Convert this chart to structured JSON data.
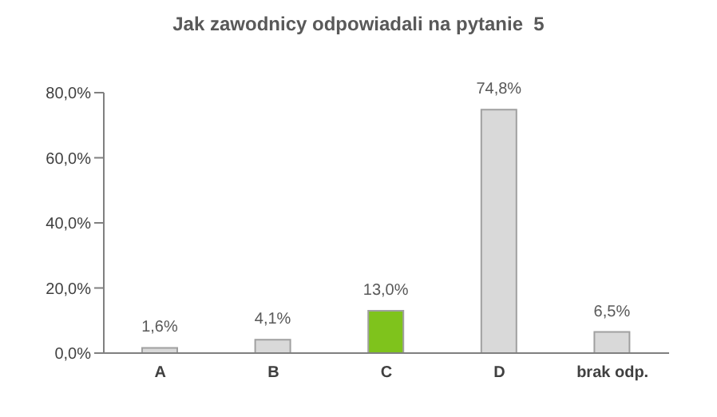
{
  "chart_data": {
    "type": "bar",
    "title": "Jak zawodnicy odpowiadali na pytanie  5",
    "categories": [
      "A",
      "B",
      "C",
      "D",
      "brak odp."
    ],
    "values": [
      1.6,
      4.1,
      13.0,
      74.8,
      6.5
    ],
    "colors": [
      "#d9d9d9",
      "#d9d9d9",
      "#7fc31c",
      "#d9d9d9",
      "#d9d9d9"
    ],
    "value_labels": [
      "1,6%",
      "4,1%",
      "13,0%",
      "74,8%",
      "6,5%"
    ],
    "ylim": [
      0,
      80
    ],
    "yticks": [
      {
        "value": 0,
        "label": "0,0%"
      },
      {
        "value": 20,
        "label": "20,0%"
      },
      {
        "value": 40,
        "label": "40,0%"
      },
      {
        "value": 60,
        "label": "60,0%"
      },
      {
        "value": 80,
        "label": "80,0%"
      }
    ],
    "grid": false
  }
}
